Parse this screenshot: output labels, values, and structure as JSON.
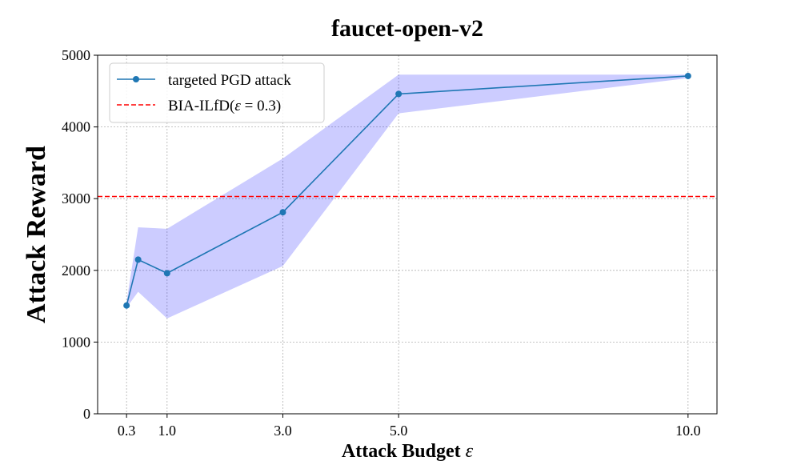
{
  "chart_data": {
    "type": "line",
    "title": "faucet-open-v2",
    "xlabel_text": "Attack Budget ",
    "xlabel_symbol": "ε",
    "ylabel": "Attack Reward",
    "x_ticks": [
      0.3,
      1.0,
      3.0,
      5.0,
      10.0
    ],
    "x_tick_labels": [
      "0.3",
      "1.0",
      "3.0",
      "5.0",
      "10.0"
    ],
    "y_ticks": [
      0,
      1000,
      2000,
      3000,
      4000,
      5000
    ],
    "y_tick_labels": [
      "0",
      "1000",
      "2000",
      "3000",
      "4000",
      "5000"
    ],
    "xlim": [
      -0.2,
      10.5
    ],
    "ylim": [
      0,
      5000
    ],
    "grid": true,
    "legend_position": "upper-left",
    "series": [
      {
        "name": "targeted PGD attack",
        "color": "#1f77b4",
        "x": [
          0.3,
          0.5,
          1.0,
          3.0,
          5.0,
          10.0
        ],
        "y": [
          1510,
          2150,
          1960,
          2810,
          4460,
          4710
        ],
        "band_upper": [
          1560,
          2600,
          2580,
          3560,
          4730,
          4730
        ],
        "band_lower": [
          1480,
          1700,
          1330,
          2060,
          4190,
          4680
        ],
        "band_color": "#0000ff"
      }
    ],
    "reference_lines": [
      {
        "name": "BIA-ILfD(",
        "name_symbol": "ε",
        "name_value": " = 0.3)",
        "y": 3030,
        "color": "#ff0000",
        "style": "dashed"
      }
    ]
  }
}
